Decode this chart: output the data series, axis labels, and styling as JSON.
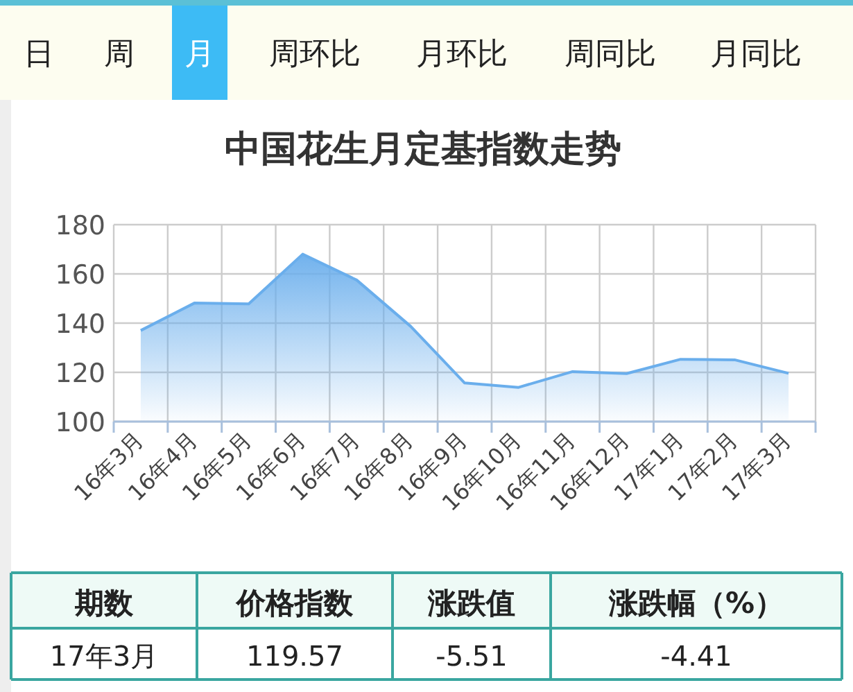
{
  "chart_data": [
    {
      "type": "other",
      "annotations": [
        "日",
        "周",
        "月",
        "周环比",
        "月环比",
        "周同比",
        "月同比"
      ]
    },
    {
      "type": "area",
      "title": "中国花生月定基指数走势",
      "categories": [
        "16年3月",
        "16年4月",
        "16年5月",
        "16年6月",
        "16年7月",
        "16年8月",
        "16年9月",
        "16年10月",
        "16年11月",
        "16年12月",
        "17年1月",
        "17年2月",
        "17年3月"
      ],
      "series": [
        {
          "color": "#6aaeec",
          "values": [
            137,
            148.2,
            147.8,
            168,
            157.5,
            138.7,
            115.7,
            113.9,
            120.3,
            119.5,
            125.3,
            125.1,
            119.6
          ]
        }
      ],
      "ylim": [
        100,
        180
      ],
      "yticks": [
        100,
        120,
        140,
        160,
        180
      ],
      "grid": true,
      "marker": "none",
      "line_style": "solid"
    },
    {
      "type": "other",
      "annotations": [
        "期数",
        "价格指数",
        "涨跌值",
        "涨跌幅（%）",
        "17年3月",
        "119.57",
        "-5.51",
        "-4.41"
      ]
    }
  ]
}
